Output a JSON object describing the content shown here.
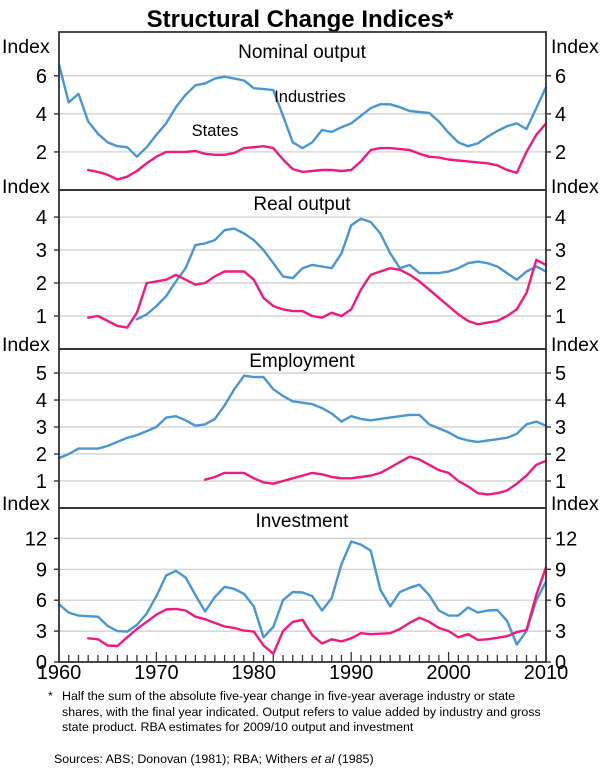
{
  "title": "Structural Change Indices*",
  "axis_unit_label": "Index",
  "legend": {
    "industries_label": "Industries",
    "states_label": "States"
  },
  "colors": {
    "industries": "#4a96d2",
    "states": "#ee1a7f",
    "grid": "#cccccc",
    "border": "#333333"
  },
  "x_axis": {
    "start_year": 1960,
    "end_year": 2010,
    "tick_labels": [
      "1960",
      "1970",
      "1980",
      "1990",
      "2000",
      "2010"
    ],
    "minor_tick_interval_years": 1
  },
  "chart_data": [
    {
      "type": "line",
      "title": "Nominal output",
      "ylabel": "Index",
      "ylim": [
        0,
        8.3
      ],
      "yticks": [
        2,
        4,
        6
      ],
      "series": [
        {
          "name": "Industries",
          "color_key": "industries",
          "start_year": 1960,
          "values": [
            6.6,
            4.6,
            5.05,
            3.6,
            2.95,
            2.5,
            2.3,
            2.25,
            1.75,
            2.25,
            2.9,
            3.5,
            4.35,
            5.0,
            5.5,
            5.6,
            5.85,
            5.95,
            5.85,
            5.75,
            5.35,
            5.3,
            5.25,
            3.9,
            2.5,
            2.2,
            2.5,
            3.15,
            3.05,
            3.3,
            3.5,
            3.9,
            4.3,
            4.5,
            4.5,
            4.35,
            4.15,
            4.1,
            4.05,
            3.6,
            3.0,
            2.5,
            2.3,
            2.45,
            2.8,
            3.1,
            3.35,
            3.5,
            3.2,
            4.3,
            5.4
          ]
        },
        {
          "name": "States",
          "color_key": "states",
          "start_year": 1963,
          "values": [
            1.05,
            0.95,
            0.8,
            0.55,
            0.7,
            1.0,
            1.4,
            1.75,
            2.0,
            2.0,
            2.0,
            2.05,
            1.9,
            1.85,
            1.85,
            1.95,
            2.2,
            2.25,
            2.3,
            2.2,
            1.6,
            1.1,
            0.95,
            1.0,
            1.05,
            1.05,
            1.0,
            1.05,
            1.5,
            2.1,
            2.2,
            2.2,
            2.15,
            2.1,
            1.9,
            1.75,
            1.7,
            1.6,
            1.55,
            1.5,
            1.45,
            1.4,
            1.3,
            1.05,
            0.9,
            2.0,
            2.9,
            3.5
          ]
        }
      ]
    },
    {
      "type": "line",
      "title": "Real output",
      "ylabel": "Index",
      "ylim": [
        0,
        4.82
      ],
      "yticks": [
        1,
        2,
        3,
        4
      ],
      "series": [
        {
          "name": "Industries",
          "color_key": "industries",
          "start_year": 1968,
          "values": [
            0.9,
            1.05,
            1.3,
            1.6,
            2.05,
            2.45,
            3.15,
            3.2,
            3.3,
            3.6,
            3.65,
            3.5,
            3.3,
            3.0,
            2.6,
            2.2,
            2.15,
            2.45,
            2.55,
            2.5,
            2.45,
            2.9,
            3.75,
            3.95,
            3.85,
            3.5,
            2.9,
            2.45,
            2.55,
            2.3,
            2.3,
            2.3,
            2.35,
            2.45,
            2.6,
            2.65,
            2.6,
            2.5,
            2.3,
            2.1,
            2.35,
            2.5,
            2.35
          ]
        },
        {
          "name": "States",
          "color_key": "states",
          "start_year": 1963,
          "values": [
            0.95,
            1.0,
            0.85,
            0.7,
            0.65,
            1.1,
            2.0,
            2.05,
            2.1,
            2.25,
            2.1,
            1.95,
            2.0,
            2.2,
            2.35,
            2.35,
            2.35,
            2.1,
            1.55,
            1.3,
            1.2,
            1.15,
            1.15,
            1.0,
            0.95,
            1.1,
            1.0,
            1.2,
            1.8,
            2.25,
            2.35,
            2.45,
            2.4,
            2.25,
            2.05,
            1.8,
            1.55,
            1.3,
            1.05,
            0.85,
            0.75,
            0.8,
            0.85,
            1.0,
            1.2,
            1.7,
            2.7,
            2.55
          ]
        }
      ]
    },
    {
      "type": "line",
      "title": "Employment",
      "ylabel": "Index",
      "ylim": [
        0,
        5.89
      ],
      "yticks": [
        1,
        2,
        3,
        4,
        5
      ],
      "series": [
        {
          "name": "Industries",
          "color_key": "industries",
          "start_year": 1960,
          "values": [
            1.85,
            2.0,
            2.2,
            2.2,
            2.2,
            2.3,
            2.45,
            2.6,
            2.7,
            2.85,
            3.0,
            3.35,
            3.4,
            3.25,
            3.05,
            3.1,
            3.3,
            3.8,
            4.4,
            4.9,
            4.85,
            4.85,
            4.4,
            4.15,
            3.95,
            3.9,
            3.85,
            3.7,
            3.5,
            3.2,
            3.4,
            3.3,
            3.25,
            3.3,
            3.35,
            3.4,
            3.45,
            3.45,
            3.1,
            2.95,
            2.8,
            2.6,
            2.5,
            2.45,
            2.5,
            2.55,
            2.6,
            2.75,
            3.1,
            3.2,
            3.05
          ]
        },
        {
          "name": "States",
          "color_key": "states",
          "start_year": 1975,
          "values": [
            1.05,
            1.15,
            1.3,
            1.3,
            1.3,
            1.1,
            0.95,
            0.9,
            1.0,
            1.1,
            1.2,
            1.3,
            1.25,
            1.15,
            1.1,
            1.1,
            1.15,
            1.2,
            1.3,
            1.5,
            1.7,
            1.9,
            1.8,
            1.6,
            1.4,
            1.3,
            1.0,
            0.8,
            0.55,
            0.5,
            0.55,
            0.65,
            0.9,
            1.2,
            1.6,
            1.75
          ]
        }
      ]
    },
    {
      "type": "line",
      "title": "Investment",
      "ylabel": "Index",
      "ylim": [
        0,
        14.95
      ],
      "yticks": [
        0,
        3,
        6,
        9,
        12
      ],
      "series": [
        {
          "name": "Industries",
          "color_key": "industries",
          "start_year": 1960,
          "values": [
            5.6,
            4.8,
            4.5,
            4.45,
            4.4,
            3.5,
            3.0,
            2.95,
            3.6,
            4.7,
            6.4,
            8.4,
            8.85,
            8.2,
            6.5,
            4.9,
            6.3,
            7.3,
            7.1,
            6.6,
            5.4,
            2.4,
            3.4,
            6.0,
            6.8,
            6.75,
            6.4,
            5.0,
            6.2,
            9.5,
            11.7,
            11.4,
            10.8,
            7.0,
            5.4,
            6.8,
            7.2,
            7.5,
            6.5,
            5.0,
            4.5,
            4.5,
            5.3,
            4.8,
            5.0,
            5.05,
            4.0,
            1.7,
            3.0,
            6.0,
            7.8
          ]
        },
        {
          "name": "States",
          "color_key": "states",
          "start_year": 1963,
          "values": [
            2.3,
            2.2,
            1.6,
            1.55,
            2.4,
            3.2,
            3.9,
            4.6,
            5.1,
            5.15,
            5.0,
            4.4,
            4.15,
            3.8,
            3.45,
            3.3,
            3.05,
            2.95,
            1.6,
            0.8,
            3.0,
            3.9,
            4.1,
            2.6,
            1.8,
            2.2,
            2.0,
            2.3,
            2.8,
            2.7,
            2.75,
            2.8,
            3.2,
            3.8,
            4.3,
            3.9,
            3.3,
            3.0,
            2.4,
            2.7,
            2.15,
            2.2,
            2.35,
            2.5,
            2.9,
            3.1,
            6.5,
            9.2
          ]
        }
      ]
    }
  ],
  "footnote": {
    "marker": "*",
    "lines": [
      "Half the sum of the absolute five-year change in five-year average industry",
      "or state shares, with the final year indicated. Output refers to value added",
      "by industry and gross state product. RBA estimates for 2009/10 output and",
      "investment"
    ]
  },
  "sources": {
    "prefix": "Sources: ABS; Donovan (1981); RBA; Withers ",
    "italic": "et al",
    "suffix": " (1985)"
  }
}
